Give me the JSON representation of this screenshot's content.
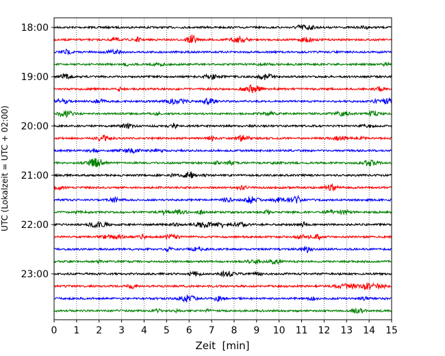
{
  "chart_data": {
    "type": "line",
    "title": "",
    "xlabel": "Zeit  [min]",
    "ylabel": "UTC (Lokalzeit = UTC + 02:00)",
    "xlim": [
      0,
      15
    ],
    "x_ticks": [
      "0",
      "1",
      "2",
      "3",
      "4",
      "5",
      "6",
      "7",
      "8",
      "9",
      "10",
      "11",
      "12",
      "13",
      "14",
      "15"
    ],
    "y_ticks": [
      "18:00",
      "19:00",
      "20:00",
      "21:00",
      "22:00",
      "23:00"
    ],
    "grid": "vertical dotted",
    "colors": [
      "#000000",
      "#ff0000",
      "#0000ff",
      "#008000"
    ],
    "series": [
      {
        "start": "18:00",
        "color": "#000000"
      },
      {
        "start": "18:15",
        "color": "#ff0000"
      },
      {
        "start": "18:30",
        "color": "#0000ff"
      },
      {
        "start": "18:45",
        "color": "#008000"
      },
      {
        "start": "19:00",
        "color": "#000000"
      },
      {
        "start": "19:15",
        "color": "#ff0000"
      },
      {
        "start": "19:30",
        "color": "#0000ff"
      },
      {
        "start": "19:45",
        "color": "#008000"
      },
      {
        "start": "20:00",
        "color": "#000000"
      },
      {
        "start": "20:15",
        "color": "#ff0000"
      },
      {
        "start": "20:30",
        "color": "#0000ff"
      },
      {
        "start": "20:45",
        "color": "#008000"
      },
      {
        "start": "21:00",
        "color": "#000000"
      },
      {
        "start": "21:15",
        "color": "#ff0000"
      },
      {
        "start": "21:30",
        "color": "#0000ff"
      },
      {
        "start": "21:45",
        "color": "#008000"
      },
      {
        "start": "22:00",
        "color": "#000000"
      },
      {
        "start": "22:15",
        "color": "#ff0000"
      },
      {
        "start": "22:30",
        "color": "#0000ff"
      },
      {
        "start": "22:45",
        "color": "#008000"
      },
      {
        "start": "23:00",
        "color": "#000000"
      },
      {
        "start": "23:15",
        "color": "#ff0000"
      },
      {
        "start": "23:30",
        "color": "#0000ff"
      },
      {
        "start": "23:45",
        "color": "#008000"
      }
    ]
  }
}
